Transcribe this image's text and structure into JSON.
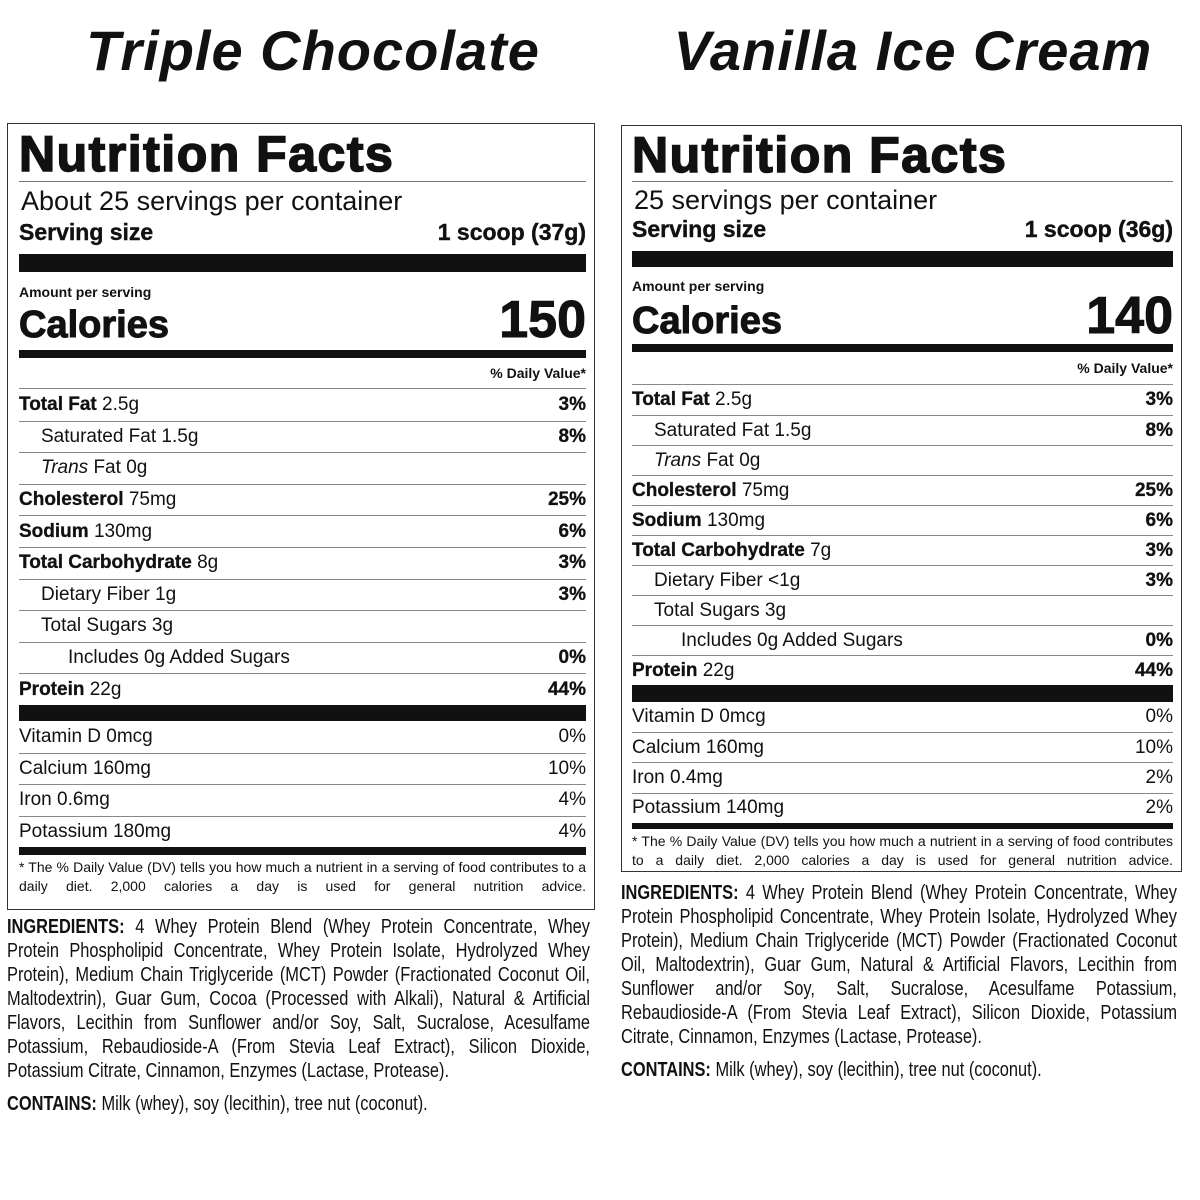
{
  "labels": [
    {
      "flavor": "Triple Chocolate",
      "title": "Nutrition Facts",
      "servings": "About 25 servings per container",
      "serving_size_label": "Serving size",
      "serving_size_value": "1 scoop (37g)",
      "amount_per_serving": "Amount per serving",
      "calories_label": "Calories",
      "calories": "150",
      "dv_header": "% Daily Value*",
      "nutrients": [
        {
          "name": "Total Fat",
          "amount": "2.5g",
          "dv": "3%",
          "bold": true,
          "indent": 0
        },
        {
          "name": "Saturated Fat",
          "amount": "1.5g",
          "dv": "8%",
          "bold": false,
          "indent": 1
        },
        {
          "italic": "Trans",
          "name": "Fat",
          "amount": "0g",
          "dv": "",
          "bold": false,
          "indent": 1
        },
        {
          "name": "Cholesterol",
          "amount": "75mg",
          "dv": "25%",
          "bold": true,
          "indent": 0
        },
        {
          "name": "Sodium",
          "amount": "130mg",
          "dv": "6%",
          "bold": true,
          "indent": 0
        },
        {
          "name": "Total Carbohydrate",
          "amount": "8g",
          "dv": "3%",
          "bold": true,
          "indent": 0
        },
        {
          "name": "Dietary Fiber",
          "amount": "1g",
          "dv": "3%",
          "bold": false,
          "indent": 1
        },
        {
          "name": "Total Sugars",
          "amount": "3g",
          "dv": "",
          "bold": false,
          "indent": 1
        },
        {
          "name": "Includes 0g Added Sugars",
          "amount": "",
          "dv": "0%",
          "bold": false,
          "indent": 2
        },
        {
          "name": "Protein",
          "amount": "22g",
          "dv": "44%",
          "bold": true,
          "indent": 0
        }
      ],
      "vitamins": [
        {
          "name": "Vitamin D 0mcg",
          "dv": "0%"
        },
        {
          "name": "Calcium 160mg",
          "dv": "10%"
        },
        {
          "name": "Iron 0.6mg",
          "dv": "4%"
        },
        {
          "name": "Potassium 180mg",
          "dv": "4%"
        }
      ],
      "footnote": "* The % Daily Value (DV) tells you how much a nutrient in a serving of food contributes to a daily diet. 2,000 calories a day is used for general nutrition advice.",
      "ingredients_label": "INGREDIENTS:",
      "ingredients": "4 Whey Protein Blend (Whey Protein Concentrate, Whey Protein Phospholipid Concentrate, Whey Protein Isolate, Hydrolyzed Whey Protein), Medium Chain Triglyceride (MCT) Powder (Fractionated Coconut Oil, Maltodextrin), Guar Gum, Cocoa (Processed with Alkali), Natural & Artificial Flavors, Lecithin from Sunflower and/or Soy, Salt, Sucralose, Acesulfame Potassium, Rebaudioside-A (From Stevia Leaf Extract), Silicon Dioxide, Potassium Citrate, Cinnamon, Enzymes (Lactase, Protease).",
      "contains_label": "CONTAINS:",
      "contains": "Milk (whey), soy (lecithin), tree nut (coconut)."
    },
    {
      "flavor": "Vanilla Ice Cream",
      "title": "Nutrition Facts",
      "servings": "25 servings per container",
      "serving_size_label": "Serving size",
      "serving_size_value": "1 scoop (36g)",
      "amount_per_serving": "Amount per serving",
      "calories_label": "Calories",
      "calories": "140",
      "dv_header": "% Daily Value*",
      "nutrients": [
        {
          "name": "Total Fat",
          "amount": "2.5g",
          "dv": "3%",
          "bold": true,
          "indent": 0
        },
        {
          "name": "Saturated Fat",
          "amount": "1.5g",
          "dv": "8%",
          "bold": false,
          "indent": 1
        },
        {
          "italic": "Trans",
          "name": "Fat",
          "amount": "0g",
          "dv": "",
          "bold": false,
          "indent": 1
        },
        {
          "name": "Cholesterol",
          "amount": "75mg",
          "dv": "25%",
          "bold": true,
          "indent": 0
        },
        {
          "name": "Sodium",
          "amount": "130mg",
          "dv": "6%",
          "bold": true,
          "indent": 0
        },
        {
          "name": "Total Carbohydrate",
          "amount": "7g",
          "dv": "3%",
          "bold": true,
          "indent": 0
        },
        {
          "name": "Dietary Fiber",
          "amount": "<1g",
          "dv": "3%",
          "bold": false,
          "indent": 1
        },
        {
          "name": "Total Sugars",
          "amount": "3g",
          "dv": "",
          "bold": false,
          "indent": 1
        },
        {
          "name": "Includes 0g Added Sugars",
          "amount": "",
          "dv": "0%",
          "bold": false,
          "indent": 2
        },
        {
          "name": "Protein",
          "amount": "22g",
          "dv": "44%",
          "bold": true,
          "indent": 0
        }
      ],
      "vitamins": [
        {
          "name": "Vitamin D 0mcg",
          "dv": "0%"
        },
        {
          "name": "Calcium 160mg",
          "dv": "10%"
        },
        {
          "name": "Iron 0.4mg",
          "dv": "2%"
        },
        {
          "name": "Potassium 140mg",
          "dv": "2%"
        }
      ],
      "footnote": "* The % Daily Value (DV) tells you how much a nutrient in a serving of food contributes to a daily diet. 2,000 calories a day is used for general nutrition advice.",
      "ingredients_label": "INGREDIENTS:",
      "ingredients": "4 Whey Protein Blend (Whey Protein Concentrate, Whey Protein Phospholipid Concentrate, Whey Protein Isolate, Hydrolyzed Whey Protein), Medium Chain Triglyceride (MCT) Powder (Fractionated Coconut Oil, Maltodextrin), Guar Gum, Natural & Artificial Flavors, Lecithin from Sunflower and/or Soy, Salt, Sucralose, Acesulfame Potassium, Rebaudioside-A (From Stevia Leaf Extract), Silicon Dioxide, Potassium Citrate, Cinnamon, Enzymes (Lactase, Protease).",
      "contains_label": "CONTAINS:",
      "contains": "Milk (whey), soy (lecithin), tree nut (coconut)."
    }
  ]
}
